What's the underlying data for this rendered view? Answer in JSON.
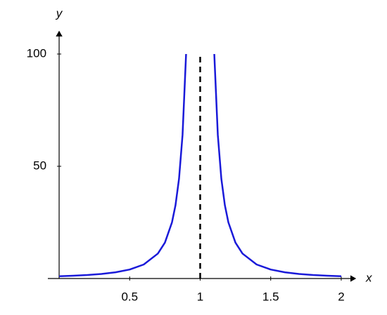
{
  "chart_data": {
    "type": "line",
    "x_label": "x",
    "y_label": "y",
    "x": [
      0,
      0.1,
      0.2,
      0.3,
      0.4,
      0.5,
      0.6,
      0.7,
      0.75,
      0.8,
      0.825,
      0.85,
      0.875,
      0.9,
      1,
      1.1,
      1.125,
      1.15,
      1.175,
      1.2,
      1.25,
      1.3,
      1.4,
      1.5,
      1.6,
      1.7,
      1.8,
      1.9,
      2
    ],
    "series": [
      {
        "color": "#1a1ad9",
        "values": [
          1,
          1.235,
          1.5625,
          2.041,
          2.778,
          4,
          6.25,
          11.11,
          16,
          25,
          32.65,
          44.44,
          64,
          100,
          null,
          100,
          64,
          44.44,
          32.65,
          25,
          16,
          11.11,
          6.25,
          4,
          2.778,
          2.041,
          1.5625,
          1.235,
          1
        ]
      }
    ],
    "asymptote_x": 1,
    "xlim": [
      -0.08,
      2.1
    ],
    "ylim": [
      0,
      110
    ],
    "xticks": [
      0.5,
      1,
      1.5,
      2
    ],
    "yticks": [
      50,
      100
    ]
  }
}
